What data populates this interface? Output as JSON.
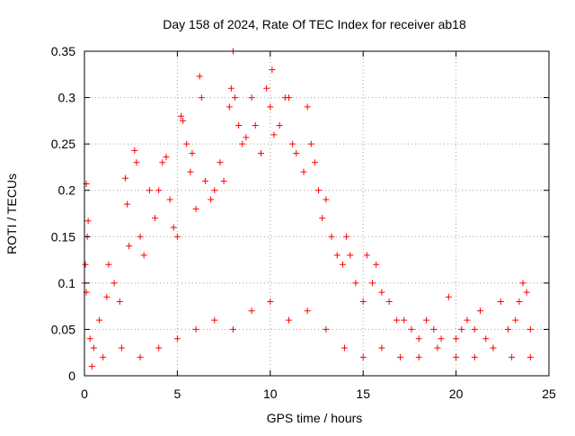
{
  "chart_data": {
    "type": "scatter",
    "title": "Day 158 of 2024, Rate Of TEC Index for receiver ab18",
    "xlabel": "GPS time / hours",
    "ylabel": "ROTI / TECUs",
    "xlim": [
      0,
      25
    ],
    "ylim": [
      0,
      0.35
    ],
    "x_ticks": [
      "0",
      "5",
      "10",
      "15",
      "20",
      "25"
    ],
    "y_ticks": [
      "0",
      "0.05",
      "0.1",
      "0.15",
      "0.2",
      "0.25",
      "0.3",
      "0.35"
    ],
    "grid": true,
    "marker": "+",
    "color": "#ff0000",
    "series": [
      {
        "points": [
          [
            0.0,
            0.1
          ],
          [
            0.05,
            0.12
          ],
          [
            0.1,
            0.207
          ],
          [
            0.15,
            0.15
          ],
          [
            0.2,
            0.167
          ],
          [
            0.1,
            0.09
          ],
          [
            0.3,
            0.04
          ],
          [
            0.5,
            0.03
          ],
          [
            0.8,
            0.06
          ],
          [
            1.2,
            0.085
          ],
          [
            1.3,
            0.12
          ],
          [
            1.6,
            0.1
          ],
          [
            1.9,
            0.08
          ],
          [
            2.2,
            0.213
          ],
          [
            2.3,
            0.185
          ],
          [
            2.4,
            0.14
          ],
          [
            2.7,
            0.243
          ],
          [
            2.8,
            0.23
          ],
          [
            3.0,
            0.15
          ],
          [
            3.2,
            0.13
          ],
          [
            3.5,
            0.2
          ],
          [
            3.8,
            0.17
          ],
          [
            4.0,
            0.2
          ],
          [
            4.2,
            0.23
          ],
          [
            4.4,
            0.236
          ],
          [
            4.6,
            0.19
          ],
          [
            4.8,
            0.16
          ],
          [
            5.0,
            0.15
          ],
          [
            5.2,
            0.28
          ],
          [
            5.3,
            0.275
          ],
          [
            5.5,
            0.25
          ],
          [
            5.7,
            0.22
          ],
          [
            5.8,
            0.24
          ],
          [
            6.0,
            0.18
          ],
          [
            6.2,
            0.323
          ],
          [
            6.3,
            0.3
          ],
          [
            6.5,
            0.21
          ],
          [
            6.8,
            0.19
          ],
          [
            7.0,
            0.2
          ],
          [
            7.3,
            0.23
          ],
          [
            7.5,
            0.21
          ],
          [
            7.8,
            0.29
          ],
          [
            7.9,
            0.31
          ],
          [
            8.0,
            0.35
          ],
          [
            8.1,
            0.3
          ],
          [
            8.3,
            0.27
          ],
          [
            8.5,
            0.25
          ],
          [
            8.7,
            0.257
          ],
          [
            9.0,
            0.3
          ],
          [
            9.2,
            0.27
          ],
          [
            9.5,
            0.24
          ],
          [
            9.8,
            0.31
          ],
          [
            10.0,
            0.29
          ],
          [
            10.1,
            0.33
          ],
          [
            10.2,
            0.26
          ],
          [
            10.5,
            0.27
          ],
          [
            10.8,
            0.3
          ],
          [
            11.0,
            0.3
          ],
          [
            11.2,
            0.25
          ],
          [
            11.4,
            0.24
          ],
          [
            11.8,
            0.22
          ],
          [
            12.0,
            0.29
          ],
          [
            12.2,
            0.25
          ],
          [
            12.4,
            0.23
          ],
          [
            12.6,
            0.2
          ],
          [
            12.8,
            0.17
          ],
          [
            13.0,
            0.19
          ],
          [
            13.3,
            0.15
          ],
          [
            13.6,
            0.13
          ],
          [
            13.9,
            0.12
          ],
          [
            14.1,
            0.15
          ],
          [
            14.3,
            0.13
          ],
          [
            14.6,
            0.1
          ],
          [
            15.0,
            0.08
          ],
          [
            15.2,
            0.13
          ],
          [
            15.5,
            0.1
          ],
          [
            15.7,
            0.12
          ],
          [
            16.0,
            0.09
          ],
          [
            16.4,
            0.08
          ],
          [
            16.8,
            0.06
          ],
          [
            17.2,
            0.06
          ],
          [
            17.6,
            0.05
          ],
          [
            18.0,
            0.04
          ],
          [
            18.4,
            0.06
          ],
          [
            18.8,
            0.05
          ],
          [
            19.2,
            0.04
          ],
          [
            19.6,
            0.085
          ],
          [
            20.0,
            0.04
          ],
          [
            20.3,
            0.05
          ],
          [
            20.6,
            0.06
          ],
          [
            21.0,
            0.05
          ],
          [
            21.3,
            0.07
          ],
          [
            21.6,
            0.04
          ],
          [
            22.0,
            0.03
          ],
          [
            22.4,
            0.08
          ],
          [
            22.8,
            0.05
          ],
          [
            23.2,
            0.06
          ],
          [
            23.4,
            0.08
          ],
          [
            23.6,
            0.1
          ],
          [
            23.8,
            0.09
          ],
          [
            24.0,
            0.05
          ],
          [
            0.4,
            0.01
          ],
          [
            1.0,
            0.02
          ],
          [
            2.0,
            0.03
          ],
          [
            3.0,
            0.02
          ],
          [
            4.0,
            0.03
          ],
          [
            5.0,
            0.04
          ],
          [
            6.0,
            0.05
          ],
          [
            7.0,
            0.06
          ],
          [
            8.0,
            0.05
          ],
          [
            9.0,
            0.07
          ],
          [
            10.0,
            0.08
          ],
          [
            11.0,
            0.06
          ],
          [
            12.0,
            0.07
          ],
          [
            13.0,
            0.05
          ],
          [
            14.0,
            0.03
          ],
          [
            15.0,
            0.02
          ],
          [
            16.0,
            0.03
          ],
          [
            17.0,
            0.02
          ],
          [
            18.0,
            0.02
          ],
          [
            19.0,
            0.03
          ],
          [
            20.0,
            0.02
          ],
          [
            21.0,
            0.02
          ],
          [
            22.0,
            0.03
          ],
          [
            23.0,
            0.02
          ],
          [
            24.0,
            0.02
          ]
        ]
      }
    ]
  }
}
